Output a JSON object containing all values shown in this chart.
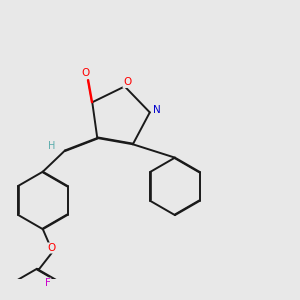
{
  "bg_color": "#e8e8e8",
  "bond_color": "#1a1a1a",
  "atom_colors": {
    "O": "#ff0000",
    "N": "#0000cd",
    "F": "#cc00cc",
    "C": "#1a1a1a",
    "H": "#5aacac"
  },
  "figsize": [
    3.0,
    3.0
  ],
  "dpi": 100
}
